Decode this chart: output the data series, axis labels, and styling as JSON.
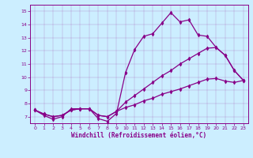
{
  "xlabel": "Windchill (Refroidissement éolien,°C)",
  "background_color": "#cceeff",
  "line_color": "#880088",
  "xlim": [
    -0.5,
    23.5
  ],
  "ylim": [
    6.5,
    15.5
  ],
  "yticks": [
    7,
    8,
    9,
    10,
    11,
    12,
    13,
    14,
    15
  ],
  "xticks": [
    0,
    1,
    2,
    3,
    4,
    5,
    6,
    7,
    8,
    9,
    10,
    11,
    12,
    13,
    14,
    15,
    16,
    17,
    18,
    19,
    20,
    21,
    22,
    23
  ],
  "line1_x": [
    0,
    1,
    2,
    3,
    4,
    5,
    6,
    7,
    8,
    9,
    10,
    11,
    12,
    13,
    14,
    15,
    16,
    17,
    18,
    19,
    20,
    21,
    22,
    23
  ],
  "line1_y": [
    7.5,
    7.1,
    6.8,
    7.0,
    7.6,
    7.6,
    7.6,
    6.85,
    6.65,
    7.25,
    10.35,
    12.1,
    13.1,
    13.3,
    14.1,
    14.9,
    14.2,
    14.35,
    13.2,
    13.1,
    12.25,
    11.65,
    10.5,
    9.75
  ],
  "line2_x": [
    0,
    1,
    2,
    3,
    4,
    5,
    6,
    7,
    8,
    9,
    10,
    11,
    12,
    13,
    14,
    15,
    16,
    17,
    18,
    19,
    20,
    21,
    22,
    23
  ],
  "line2_y": [
    7.5,
    7.2,
    7.0,
    7.1,
    7.5,
    7.6,
    7.6,
    7.1,
    7.0,
    7.4,
    8.1,
    8.6,
    9.1,
    9.6,
    10.1,
    10.5,
    11.0,
    11.4,
    11.8,
    12.2,
    12.25,
    11.65,
    10.5,
    9.75
  ],
  "line3_x": [
    0,
    1,
    2,
    3,
    4,
    5,
    6,
    7,
    8,
    9,
    10,
    11,
    12,
    13,
    14,
    15,
    16,
    17,
    18,
    19,
    20,
    21,
    22,
    23
  ],
  "line3_y": [
    7.5,
    7.2,
    7.0,
    7.1,
    7.5,
    7.6,
    7.6,
    7.1,
    7.0,
    7.4,
    7.7,
    7.9,
    8.2,
    8.4,
    8.7,
    8.9,
    9.1,
    9.35,
    9.6,
    9.85,
    9.9,
    9.7,
    9.6,
    9.75
  ]
}
